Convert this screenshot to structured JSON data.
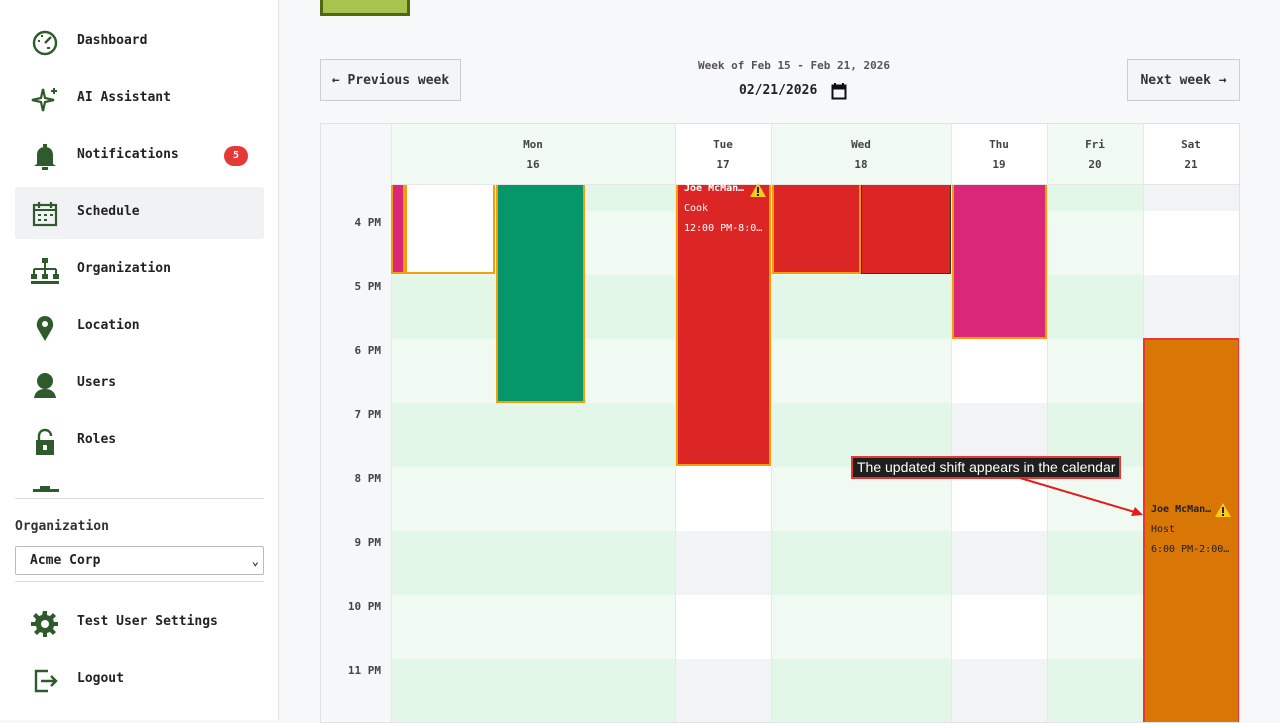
{
  "sidebar": {
    "items": [
      {
        "label": "Dashboard",
        "icon": "dashboard-icon"
      },
      {
        "label": "AI Assistant",
        "icon": "sparkle-icon"
      },
      {
        "label": "Notifications",
        "icon": "bell-icon",
        "badge": "5"
      },
      {
        "label": "Schedule",
        "icon": "calendar-icon",
        "active": true
      },
      {
        "label": "Organization",
        "icon": "org-chart-icon"
      },
      {
        "label": "Location",
        "icon": "location-pin-icon"
      },
      {
        "label": "Users",
        "icon": "user-icon"
      },
      {
        "label": "Roles",
        "icon": "lock-icon"
      }
    ],
    "organization_label": "Organization",
    "organization_value": "Acme Corp",
    "footer_items": [
      {
        "label": "Test User Settings",
        "icon": "gear-icon"
      },
      {
        "label": "Logout",
        "icon": "logout-icon"
      }
    ]
  },
  "toolbar": {
    "prev_label": "← Previous week",
    "next_label": "Next week →",
    "week_label": "Week of Feb 15 - Feb 21, 2026",
    "date_value": "02/21/2026"
  },
  "calendar": {
    "days": [
      {
        "name": "Mon",
        "num": "16"
      },
      {
        "name": "Tue",
        "num": "17"
      },
      {
        "name": "Wed",
        "num": "18"
      },
      {
        "name": "Thu",
        "num": "19"
      },
      {
        "name": "Fri",
        "num": "20"
      },
      {
        "name": "Sat",
        "num": "21"
      }
    ],
    "times": [
      "4 PM",
      "5 PM",
      "6 PM",
      "7 PM",
      "8 PM",
      "9 PM",
      "10 PM",
      "11 PM"
    ],
    "events": {
      "tue": {
        "title": "Joe McMan…",
        "role": "Cook",
        "time": "12:00 PM-8:0…",
        "color": "#dc2626"
      },
      "sat": {
        "title": "Joe McMan…",
        "role": "Host",
        "time": "6:00 PM-2:00…",
        "color": "#d97706"
      }
    }
  },
  "annotation": {
    "text": "The updated shift appears in the calendar"
  }
}
